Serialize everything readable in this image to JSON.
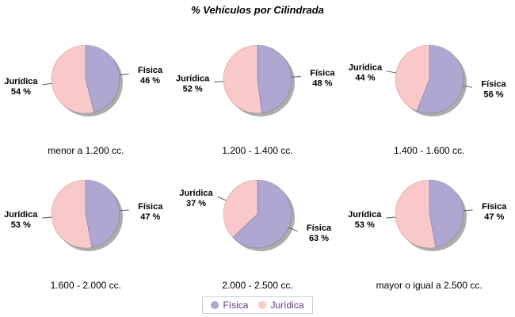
{
  "title": "% Vehículos por Cilindrada",
  "legend": {
    "items": [
      {
        "label": "Física",
        "color": "#b0a6d2"
      },
      {
        "label": "Jurídica",
        "color": "#f9c9ca"
      }
    ],
    "text_color": "#663388"
  },
  "chart_data": {
    "type": "pie",
    "title": "% Vehículos por Cilindrada",
    "layout": "2 rows x 3 columns of pies, legend bottom center, drop shadow on each pie",
    "series_names": [
      "Física",
      "Jurídica"
    ],
    "colors": [
      "#b0a6d2",
      "#f9c9ca"
    ],
    "shadow_color": "#999999",
    "value_label_format": "{value} %",
    "pies": [
      {
        "category": "menor a 1.200 cc.",
        "fisica": 46,
        "juridica": 54
      },
      {
        "category": "1.200 - 1.400 cc.",
        "fisica": 48,
        "juridica": 52
      },
      {
        "category": "1.400 - 1.600 cc.",
        "fisica": 56,
        "juridica": 44
      },
      {
        "category": "1.600 - 2.000 cc.",
        "fisica": 47,
        "juridica": 53
      },
      {
        "category": "2.000 - 2.500 cc.",
        "fisica": 63,
        "juridica": 37
      },
      {
        "category": "mayor o igual a 2.500 cc.",
        "fisica": 47,
        "juridica": 53
      }
    ]
  }
}
